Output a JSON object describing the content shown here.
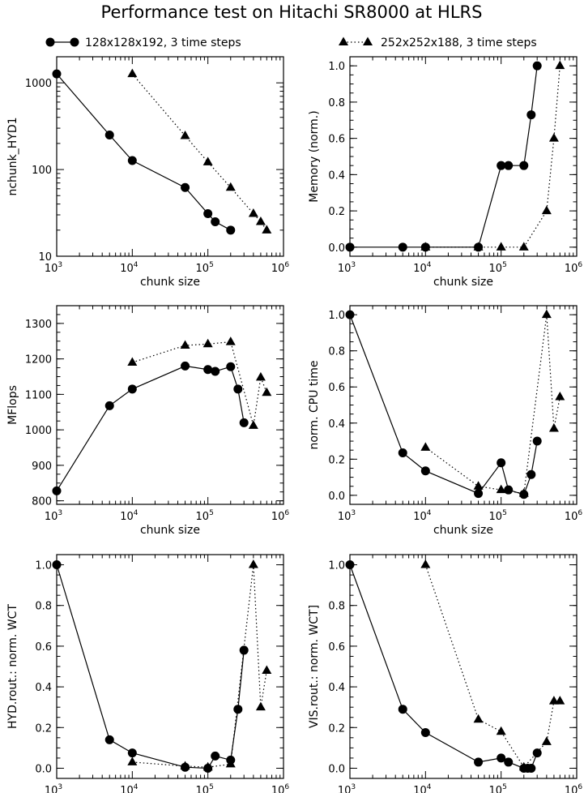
{
  "title": "Performance test on Hitachi SR8000 at HLRS",
  "legend": {
    "position": "top",
    "series": [
      {
        "name": "128x128x192, 3 time steps",
        "marker": "circle",
        "line": "solid"
      },
      {
        "name": "252x252x188, 3 time steps",
        "marker": "triangle",
        "line": "dotted"
      }
    ]
  },
  "chart_data": [
    {
      "type": "line",
      "xlabel": "chunk size",
      "ylabel": "nchunk_HYD1",
      "xscale": "log",
      "yscale": "log",
      "xlim": [
        1000,
        1000000
      ],
      "ylim": [
        10,
        2000
      ],
      "xticks": [
        {
          "v": 1000,
          "base": "10",
          "exp": "3"
        },
        {
          "v": 10000,
          "base": "10",
          "exp": "4"
        },
        {
          "v": 100000,
          "base": "10",
          "exp": "5"
        },
        {
          "v": 1000000,
          "base": "10",
          "exp": "6"
        }
      ],
      "yticks": [
        "10",
        "100",
        "1000"
      ],
      "series": [
        {
          "x": [
            1000,
            5000,
            10000,
            50000,
            100000,
            125000,
            200000
          ],
          "y": [
            1270,
            250,
            127,
            62,
            31,
            25,
            20
          ]
        },
        {
          "x": [
            10000,
            50000,
            100000,
            200000,
            400000,
            500000,
            600000
          ],
          "y": [
            1270,
            245,
            122,
            62,
            31,
            25,
            20
          ]
        }
      ]
    },
    {
      "type": "line",
      "xlabel": "chunk size",
      "ylabel": "Memory (norm.)",
      "xscale": "log",
      "yscale": "linear",
      "xlim": [
        1000,
        1000000
      ],
      "ylim": [
        -0.05,
        1.05
      ],
      "xticks": [
        {
          "v": 1000,
          "base": "10",
          "exp": "3"
        },
        {
          "v": 10000,
          "base": "10",
          "exp": "4"
        },
        {
          "v": 100000,
          "base": "10",
          "exp": "5"
        },
        {
          "v": 1000000,
          "base": "10",
          "exp": "6"
        }
      ],
      "yticks": [
        "0.0",
        "0.2",
        "0.4",
        "0.6",
        "0.8",
        "1.0"
      ],
      "series": [
        {
          "x": [
            1000,
            5000,
            10000,
            50000,
            100000,
            125000,
            200000,
            250000,
            300000
          ],
          "y": [
            0,
            0,
            0,
            0,
            0.45,
            0.45,
            0.45,
            0.73,
            1.0
          ]
        },
        {
          "x": [
            10000,
            50000,
            100000,
            200000,
            400000,
            500000,
            600000
          ],
          "y": [
            0,
            0,
            0,
            0,
            0.2,
            0.6,
            1.0
          ]
        }
      ]
    },
    {
      "type": "line",
      "xlabel": "chunk size",
      "ylabel": "MFlops",
      "xscale": "log",
      "yscale": "linear",
      "xlim": [
        1000,
        1000000
      ],
      "ylim": [
        790,
        1350
      ],
      "xticks": [
        {
          "v": 1000,
          "base": "10",
          "exp": "3"
        },
        {
          "v": 10000,
          "base": "10",
          "exp": "4"
        },
        {
          "v": 100000,
          "base": "10",
          "exp": "5"
        },
        {
          "v": 1000000,
          "base": "10",
          "exp": "6"
        }
      ],
      "yticks": [
        "800",
        "900",
        "1000",
        "1100",
        "1200",
        "1300"
      ],
      "series": [
        {
          "x": [
            1000,
            5000,
            10000,
            50000,
            100000,
            125000,
            200000,
            250000,
            300000
          ],
          "y": [
            828,
            1068,
            1115,
            1180,
            1170,
            1165,
            1178,
            1115,
            1020
          ]
        },
        {
          "x": [
            10000,
            50000,
            100000,
            200000,
            400000,
            500000,
            600000
          ],
          "y": [
            1190,
            1238,
            1242,
            1248,
            1012,
            1148,
            1105
          ]
        }
      ]
    },
    {
      "type": "line",
      "xlabel": "chunk size",
      "ylabel": "norm. CPU time",
      "xscale": "log",
      "yscale": "linear",
      "xlim": [
        1000,
        1000000
      ],
      "ylim": [
        -0.05,
        1.05
      ],
      "xticks": [
        {
          "v": 1000,
          "base": "10",
          "exp": "3"
        },
        {
          "v": 10000,
          "base": "10",
          "exp": "4"
        },
        {
          "v": 100000,
          "base": "10",
          "exp": "5"
        },
        {
          "v": 1000000,
          "base": "10",
          "exp": "6"
        }
      ],
      "yticks": [
        "0.0",
        "0.2",
        "0.4",
        "0.6",
        "0.8",
        "1.0"
      ],
      "series": [
        {
          "x": [
            1000,
            5000,
            10000,
            50000,
            100000,
            125000,
            200000,
            250000,
            300000
          ],
          "y": [
            1.0,
            0.235,
            0.135,
            0.01,
            0.18,
            0.03,
            0.005,
            0.115,
            0.3
          ]
        },
        {
          "x": [
            10000,
            50000,
            100000,
            200000,
            400000,
            500000,
            600000
          ],
          "y": [
            0.265,
            0.05,
            0.03,
            0.01,
            1.0,
            0.37,
            0.545
          ]
        }
      ]
    },
    {
      "type": "line",
      "xlabel": "chunk size",
      "ylabel": "HYD.rout.: norm. WCT",
      "xscale": "log",
      "yscale": "linear",
      "xlim": [
        1000,
        1000000
      ],
      "ylim": [
        -0.05,
        1.05
      ],
      "xticks": [
        {
          "v": 1000,
          "base": "10",
          "exp": "3"
        },
        {
          "v": 10000,
          "base": "10",
          "exp": "4"
        },
        {
          "v": 100000,
          "base": "10",
          "exp": "5"
        },
        {
          "v": 1000000,
          "base": "10",
          "exp": "6"
        }
      ],
      "yticks": [
        "0.0",
        "0.2",
        "0.4",
        "0.6",
        "0.8",
        "1.0"
      ],
      "series": [
        {
          "x": [
            1000,
            5000,
            10000,
            50000,
            100000,
            125000,
            200000,
            250000,
            300000
          ],
          "y": [
            1.0,
            0.14,
            0.075,
            0.005,
            0.0,
            0.06,
            0.04,
            0.29,
            0.58
          ]
        },
        {
          "x": [
            10000,
            50000,
            100000,
            200000,
            400000,
            500000,
            600000
          ],
          "y": [
            0.03,
            0.01,
            0.005,
            0.02,
            1.0,
            0.3,
            0.48
          ]
        }
      ]
    },
    {
      "type": "line",
      "xlabel": "chunk size",
      "ylabel": "VIS.rout.: norm. WCT]",
      "xscale": "log",
      "yscale": "linear",
      "xlim": [
        1000,
        1000000
      ],
      "ylim": [
        -0.05,
        1.05
      ],
      "xticks": [
        {
          "v": 1000,
          "base": "10",
          "exp": "3"
        },
        {
          "v": 10000,
          "base": "10",
          "exp": "4"
        },
        {
          "v": 100000,
          "base": "10",
          "exp": "5"
        },
        {
          "v": 1000000,
          "base": "10",
          "exp": "6"
        }
      ],
      "yticks": [
        "0.0",
        "0.2",
        "0.4",
        "0.6",
        "0.8",
        "1.0"
      ],
      "series": [
        {
          "x": [
            1000,
            5000,
            10000,
            50000,
            100000,
            125000,
            200000,
            225000,
            250000,
            300000
          ],
          "y": [
            1.0,
            0.29,
            0.175,
            0.03,
            0.05,
            0.03,
            0.0,
            0.0,
            0.0,
            0.075
          ]
        },
        {
          "x": [
            10000,
            50000,
            100000,
            200000,
            400000,
            500000,
            600000
          ],
          "y": [
            1.0,
            0.24,
            0.18,
            0.005,
            0.13,
            0.33,
            0.33
          ]
        }
      ]
    }
  ]
}
